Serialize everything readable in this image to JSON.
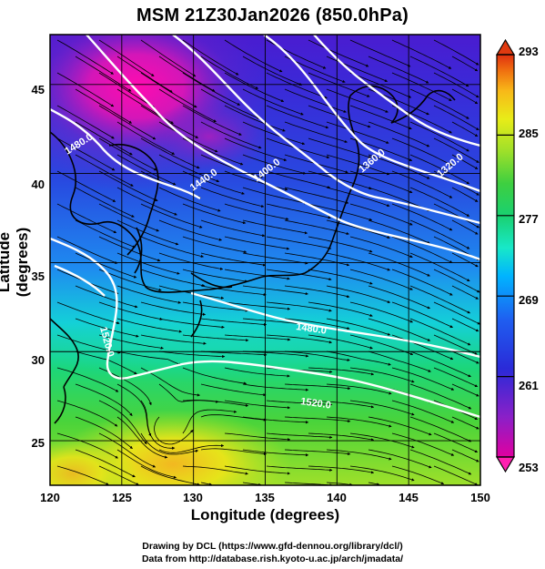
{
  "title": "MSM 21Z30Jan2026 (850.0hPa)",
  "xlabel": "Longitude (degrees)",
  "ylabel": "Latitude  (degrees)",
  "credits": {
    "line1": "Drawing by DCL (https://www.gfd-dennou.org/library/dcl/)",
    "line2": "Data from http://database.rish.kyoto-u.ac.jp/arch/jmadata/"
  },
  "map": {
    "lon_ticks": [
      "120",
      "125",
      "130",
      "135",
      "140",
      "145",
      "150"
    ],
    "lat_ticks": [
      "25",
      "30",
      "35",
      "40",
      "45"
    ],
    "lon_range": [
      120,
      150
    ],
    "lat_range": [
      22.5,
      47.8
    ],
    "grid_lon": [
      125,
      130,
      135,
      140,
      145
    ],
    "grid_lat": [
      25,
      30,
      35,
      40,
      45
    ],
    "contour_labels": [
      "1480.0",
      "1440.0",
      "1400.0",
      "1360.0",
      "1320.0",
      "1520.0",
      "1480.0",
      "1520.0"
    ],
    "colorbar": {
      "ticks": [
        "293",
        "285",
        "277",
        "269",
        "261",
        "253"
      ],
      "min": 253,
      "max": 293,
      "colors": [
        "#e000a0",
        "#8a20c8",
        "#2a2ad8",
        "#1f5ef0",
        "#00b4ff",
        "#18e8c8",
        "#1ad070",
        "#3ecf40",
        "#9ee02a",
        "#e8ec18",
        "#f8b818",
        "#f07010",
        "#e03010"
      ]
    }
  }
}
